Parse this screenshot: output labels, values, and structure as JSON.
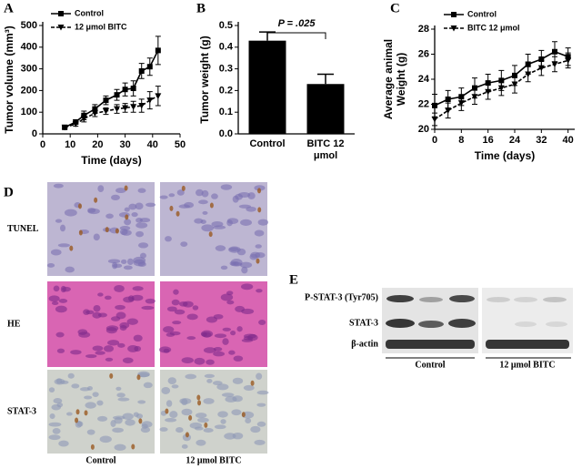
{
  "chart_data": [
    {
      "type": "line",
      "panel": "A",
      "xlabel": "Time (days)",
      "ylabel": [
        "Tumor volume (mm³)"
      ],
      "x": [
        8,
        12,
        15,
        19,
        23,
        27,
        30,
        33,
        36,
        39,
        42
      ],
      "series": [
        {
          "name": "Control",
          "color": "#000000",
          "marker": "square",
          "dash": false,
          "values": [
            30,
            55,
            85,
            115,
            155,
            180,
            205,
            210,
            290,
            310,
            385
          ],
          "errors": [
            5,
            10,
            20,
            20,
            20,
            25,
            30,
            35,
            35,
            40,
            65
          ]
        },
        {
          "name": "12 μmol BITC",
          "color": "#000000",
          "marker": "triangle",
          "dash": true,
          "values": [
            30,
            45,
            70,
            95,
            105,
            115,
            120,
            125,
            130,
            155,
            175
          ],
          "errors": [
            5,
            10,
            15,
            15,
            15,
            20,
            20,
            25,
            30,
            40,
            45
          ]
        }
      ],
      "xlim": [
        0,
        50
      ],
      "xticks": [
        0,
        10,
        20,
        30,
        40,
        50
      ],
      "ylim": [
        0,
        500
      ],
      "yticks": [
        0,
        100,
        200,
        300,
        400,
        500
      ],
      "legend": "upper left"
    },
    {
      "type": "bar",
      "panel": "B",
      "ylabel": [
        "Tumor weight (g)"
      ],
      "categories": [
        "Control",
        "BITC 12 μmol"
      ],
      "values": [
        0.43,
        0.23
      ],
      "errors": [
        0.04,
        0.045
      ],
      "color": "#000000",
      "ylim": [
        0,
        0.5
      ],
      "yticks": [
        {
          "value": 0,
          "label": "0.0"
        },
        {
          "value": 0.1,
          "label": "0.1"
        },
        {
          "value": 0.2,
          "label": "0.2"
        },
        {
          "value": 0.3,
          "label": "0.3"
        },
        {
          "value": 0.4,
          "label": "0.4"
        },
        {
          "value": 0.5,
          "label": "0.5"
        }
      ],
      "annotation": "P = .025"
    },
    {
      "type": "line",
      "panel": "C",
      "xlabel": "Time (days)",
      "ylabel": [
        "Average animal",
        "Weight (g)"
      ],
      "x": [
        0,
        4,
        8,
        12,
        16,
        20,
        24,
        28,
        32,
        36,
        40
      ],
      "series": [
        {
          "name": "Control",
          "color": "#000000",
          "marker": "square",
          "dash": false,
          "values": [
            21.9,
            22.4,
            22.6,
            23.3,
            23.7,
            23.9,
            24.3,
            25.2,
            25.6,
            26.2,
            25.8
          ],
          "errors": [
            0.9,
            0.7,
            0.7,
            0.8,
            0.7,
            0.8,
            0.8,
            0.8,
            0.7,
            0.8,
            0.7
          ]
        },
        {
          "name": "BITC 12 μmol",
          "color": "#000000",
          "marker": "triangle",
          "dash": true,
          "values": [
            20.8,
            21.5,
            22.1,
            22.6,
            23.0,
            23.3,
            23.6,
            24.4,
            24.9,
            25.2,
            25.5
          ],
          "errors": [
            0.5,
            0.6,
            0.6,
            0.6,
            0.6,
            0.6,
            0.7,
            0.6,
            0.6,
            0.6,
            0.6
          ]
        }
      ],
      "xlim": [
        0,
        42
      ],
      "xticks": [
        0,
        8,
        16,
        24,
        32,
        40
      ],
      "ylim": [
        20,
        28
      ],
      "yticks": [
        20,
        22,
        24,
        26,
        28
      ],
      "legend": "upper left"
    }
  ],
  "figure_d": {
    "panel": "D",
    "rows": [
      "TUNEL",
      "HE",
      "STAT-3"
    ],
    "columns": [
      "Control",
      "12 μmol BITC"
    ]
  },
  "figure_e": {
    "panel": "E",
    "rows": [
      "P-STAT-3 (Tyr705)",
      "STAT-3",
      "β-actin"
    ],
    "groups": [
      "Control",
      "12 μmol BITC"
    ]
  }
}
